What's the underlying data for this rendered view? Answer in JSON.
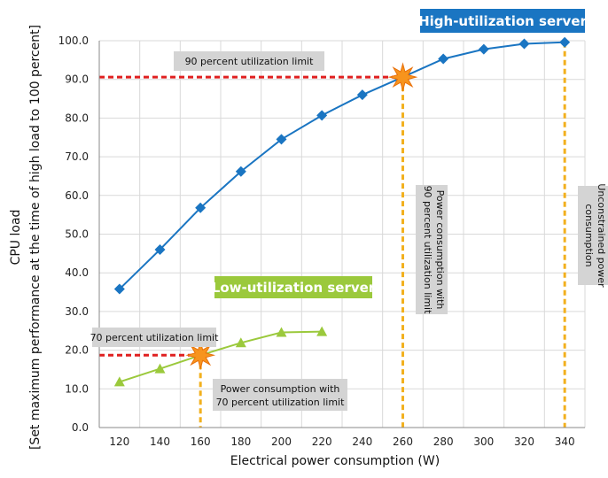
{
  "chart_data": {
    "type": "line",
    "xlabel": "Electrical power consumption (W)",
    "ylabel_line1": "CPU load",
    "ylabel_line2": "[Set maximum performance at the time of high load to 100 percent]",
    "xlim": [
      110,
      350
    ],
    "ylim": [
      0,
      100
    ],
    "x_ticks": [
      120,
      140,
      160,
      180,
      200,
      220,
      240,
      260,
      280,
      300,
      320,
      340
    ],
    "y_ticks": [
      0.0,
      10.0,
      20.0,
      30.0,
      40.0,
      50.0,
      60.0,
      70.0,
      80.0,
      90.0,
      100.0
    ],
    "y_tick_labels": [
      "0.0",
      "10.0",
      "20.0",
      "30.0",
      "40.0",
      "50.0",
      "60.0",
      "70.0",
      "80.0",
      "90.0",
      "100.0"
    ],
    "grid": true,
    "series": [
      {
        "name": "High-utilization server",
        "color": "#1a75c2",
        "marker": "diamond",
        "x": [
          120,
          140,
          160,
          180,
          200,
          220,
          240,
          260,
          280,
          300,
          320,
          340
        ],
        "y": [
          35.8,
          46.0,
          56.8,
          66.2,
          74.5,
          80.7,
          86.0,
          90.6,
          95.3,
          97.8,
          99.2,
          99.6
        ]
      },
      {
        "name": "Low-utilization server",
        "color": "#9bc93c",
        "marker": "triangle",
        "x": [
          120,
          140,
          160,
          180,
          200,
          220
        ],
        "y": [
          11.8,
          15.2,
          18.7,
          21.9,
          24.6,
          24.8
        ]
      }
    ],
    "limit_lines": [
      {
        "label": "90 percent  utilization limit",
        "y": 90.6,
        "x_from": 110,
        "x_to": 260,
        "color": "#e02020"
      },
      {
        "label": "70 percent utilization limit",
        "y": 18.7,
        "x_from": 110,
        "x_to": 160,
        "color": "#e02020"
      }
    ],
    "vertical_lines": [
      {
        "label_line1": "Power consumption with",
        "label_line2": "70 percent utilization limit",
        "x": 160,
        "y_from": 0,
        "y_to": 18.7,
        "color": "#f2b01e"
      },
      {
        "label_line1": "Power consumption with",
        "label_line2": "90 percent utilization limit",
        "x": 260,
        "y_from": 0,
        "y_to": 90.6,
        "color": "#f2b01e"
      },
      {
        "label_line1": "Unconstrained power",
        "label_line2": "consumption",
        "x": 340,
        "y_from": 0,
        "y_to": 99.6,
        "color": "#f2b01e"
      }
    ],
    "highlight_points": [
      {
        "x": 260,
        "y": 90.6,
        "color": "#f7941d"
      },
      {
        "x": 160,
        "y": 18.7,
        "color": "#f7941d"
      }
    ],
    "badge_colors": {
      "high": "#1a75c2",
      "low": "#9bc93c",
      "note_bg": "#d4d4d4"
    }
  }
}
